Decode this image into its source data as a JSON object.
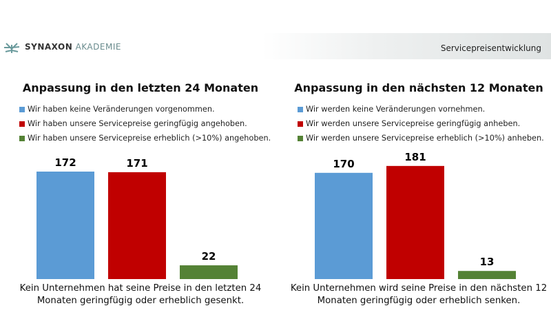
{
  "header": {
    "logo_bold": "SYNAXON",
    "logo_light": "AKADEMIE",
    "title": "Servicepreisentwicklung"
  },
  "colors": {
    "blue": "#5b9bd5",
    "red": "#c00000",
    "green": "#548235"
  },
  "chart_data": [
    {
      "type": "bar",
      "title": "Anpassung in den letzten 24 Monaten",
      "categories": [
        "Wir haben keine Veränderungen vorgenommen.",
        "Wir haben unsere Servicepreise geringfügig angehoben.",
        "Wir haben unsere Servicepreise erheblich (>10%) angehoben."
      ],
      "values": [
        172,
        171,
        22
      ],
      "value_labels": [
        "172",
        "171",
        "22"
      ],
      "ylim": [
        0,
        190
      ],
      "grid": false,
      "legend": "top-left",
      "note": "Kein Unternehmen hat seine Preise in den letzten 24 Monaten geringfügig oder erheblich gesenkt."
    },
    {
      "type": "bar",
      "title": "Anpassung in den nächsten 12 Monaten",
      "categories": [
        "Wir werden keine Veränderungen vornehmen.",
        "Wir werden unsere Servicepreise geringfügig anheben.",
        "Wir werden unsere Servicepreise erheblich (>10%) anheben."
      ],
      "values": [
        170,
        181,
        13
      ],
      "value_labels": [
        "170",
        "181",
        "13"
      ],
      "ylim": [
        0,
        190
      ],
      "grid": false,
      "legend": "top-left",
      "note": "Kein Unternehmen wird seine Preise in den nächsten 12 Monaten geringfügig oder erheblich senken."
    }
  ]
}
